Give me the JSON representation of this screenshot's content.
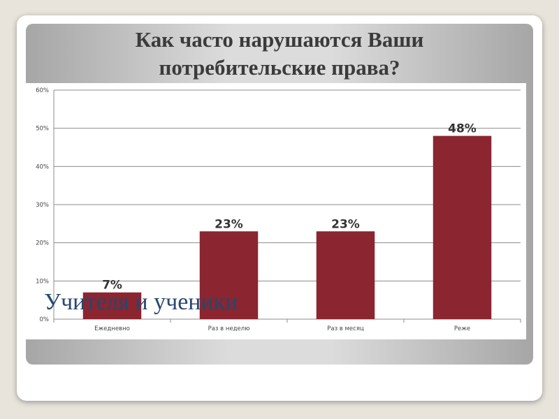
{
  "slide": {
    "title_line1": "Как часто нарушаются Ваши",
    "title_line2": "потребительские права?",
    "overlay_caption": "Учителя и ученики"
  },
  "colors": {
    "bar": "#8b2530",
    "grid": "#8c8c8c",
    "text": "#444444",
    "label": "#27476e"
  },
  "chart_data": {
    "type": "bar",
    "title": "Как часто нарушаются Ваши потребительские права?",
    "xlabel": "",
    "ylabel": "",
    "categories": [
      "Ежедневно",
      "Раз в неделю",
      "Раз в месяц",
      "Реже"
    ],
    "values": [
      7,
      23,
      23,
      48
    ],
    "data_labels": [
      "7%",
      "23%",
      "23%",
      "48%"
    ],
    "yticks": [
      0,
      10,
      20,
      30,
      40,
      50,
      60
    ],
    "ytick_labels": [
      "0%",
      "10%",
      "20%",
      "30%",
      "40%",
      "50%",
      "60%"
    ],
    "ylim": [
      0,
      60
    ],
    "grid": true,
    "legend": "none"
  }
}
